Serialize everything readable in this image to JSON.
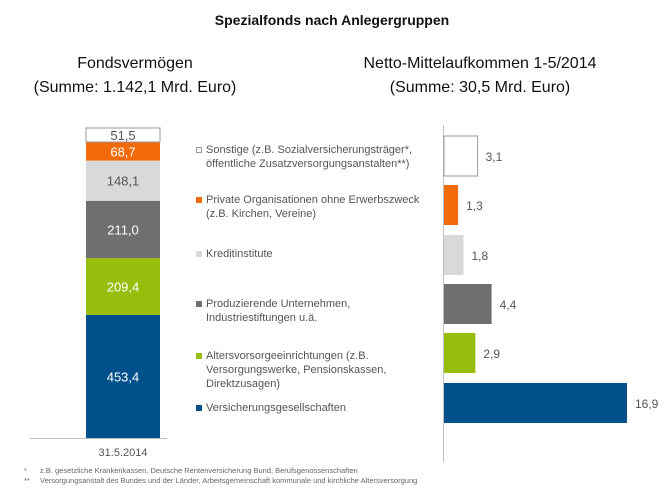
{
  "title": "Spezialfonds nach Anlegergruppen",
  "colors": {
    "sonstige": "#ffffff",
    "private": "#f26b08",
    "kredit": "#d9d9d9",
    "produzierende": "#6f6f6f",
    "alters": "#97be0d",
    "versicherung": "#00508c",
    "outline": "#999999",
    "axis": "#bfbfbf",
    "label_dark": "#555555",
    "label_light": "#ffffff"
  },
  "legend": [
    {
      "key": "sonstige",
      "label": "Sonstige (z.B. Sozialversicherungsträger*,\nöffentliche Zusatzversorgungsanstalten**)"
    },
    {
      "key": "private",
      "label": "Private Organisationen ohne Erwerbszweck\n(z.B. Kirchen, Vereine)"
    },
    {
      "key": "kredit",
      "label": "Kreditinstitute"
    },
    {
      "key": "produzierende",
      "label": "Produzierende Unternehmen,\nIndustriestiftungen u.ä."
    },
    {
      "key": "alters",
      "label": "Altersvorsorgeeinrichtungen (z.B.\nVersorgungswerke, Pensionskassen,\nDirektzusagen)"
    },
    {
      "key": "versicherung",
      "label": "Versicherungsgesellschaften"
    }
  ],
  "footnotes": [
    {
      "mark": "*",
      "text": "z.B. gesetzliche Krankenkassen, Deutsche Rentenversicherung  Bund, Berufsgenossenschaften"
    },
    {
      "mark": "**",
      "text": "Versorgungsanstalt des Bundes und der Länder, Arbeitsgemeinschaft kommunale und kirchliche Altersversorgung"
    }
  ],
  "chart_data": [
    {
      "type": "bar",
      "stacked": true,
      "title": "Fondsvermögen",
      "subtitle": "(Summe: 1.142,1 Mrd. Euro)",
      "categories": [
        "31.5.2014"
      ],
      "unit": "Mrd. Euro",
      "total": 1142.1,
      "series": [
        {
          "name": "Versicherungsgesellschaften",
          "key": "versicherung",
          "values": [
            453.4
          ],
          "label": "453,4"
        },
        {
          "name": "Altersvorsorgeeinrichtungen",
          "key": "alters",
          "values": [
            209.4
          ],
          "label": "209,4"
        },
        {
          "name": "Produzierende Unternehmen, Industriestiftungen u.ä.",
          "key": "produzierende",
          "values": [
            211.0
          ],
          "label": "211,0"
        },
        {
          "name": "Kreditinstitute",
          "key": "kredit",
          "values": [
            148.1
          ],
          "label": "148,1"
        },
        {
          "name": "Private Organisationen ohne Erwerbszweck",
          "key": "private",
          "values": [
            68.7
          ],
          "label": "68,7"
        },
        {
          "name": "Sonstige",
          "key": "sonstige",
          "values": [
            51.5
          ],
          "label": "51,5"
        }
      ]
    },
    {
      "type": "bar",
      "orientation": "horizontal",
      "title": "Netto-Mittelaufkommen 1-5/2014",
      "subtitle": "(Summe: 30,5 Mrd. Euro)",
      "unit": "Mrd. Euro",
      "total": 30.5,
      "categories": [
        "Sonstige",
        "Private Organisationen ohne Erwerbszweck",
        "Kreditinstitute",
        "Produzierende Unternehmen, Industriestiftungen u.ä.",
        "Altersvorsorgeeinrichtungen",
        "Versicherungsgesellschaften"
      ],
      "keys": [
        "sonstige",
        "private",
        "kredit",
        "produzierende",
        "alters",
        "versicherung"
      ],
      "values": [
        3.1,
        1.3,
        1.8,
        4.4,
        2.9,
        16.9
      ],
      "labels": [
        "3,1",
        "1,3",
        "1,8",
        "4,4",
        "2,9",
        "16,9"
      ]
    }
  ]
}
